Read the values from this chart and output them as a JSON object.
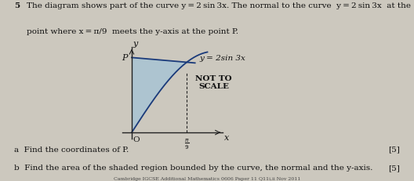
{
  "background_color": "#ccc8be",
  "shaded_color": "#a8c4d4",
  "curve_color": "#1a3a7a",
  "normal_color": "#1a3a7a",
  "axis_color": "#222222",
  "text_color": "#111111",
  "title_number": "5",
  "title_line1": "The diagram shows part of the curve y = 2 sin 3x. The normal to the curve  y = 2 sin 3x  at the",
  "title_line2": "point where x = π/9  meets the y-axis at the point P.",
  "curve_label": "y = 2sin 3x",
  "not_to_scale_1": "NOT TO",
  "not_to_scale_2": "SCALE",
  "label_a": "a  Find the coordinates of P.",
  "label_b": "b  Find the area of the shaded region bounded by the curve, the normal and the y-axis.",
  "marks_a": "[5]",
  "marks_b": "[5]",
  "footer": "Cambridge IGCSE Additional Mathematics 0606 Paper 11 Q11i,ii Nov 2011"
}
